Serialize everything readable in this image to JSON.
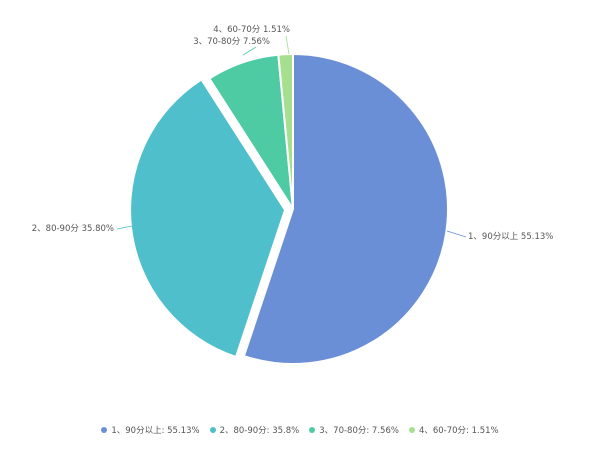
{
  "chart_data": {
    "type": "pie",
    "title": "",
    "categories": [
      "1、90分以上",
      "2、80-90分",
      "3、70-80分",
      "4、60-70分"
    ],
    "values": [
      55.13,
      35.8,
      7.56,
      1.51
    ],
    "slice_labels": [
      "1、90分以上 55.13%",
      "2、80-90分 35.80%",
      "3、70-80分 7.56%",
      "4、60-70分 1.51%"
    ],
    "legend_labels": [
      "1、90分以上: 55.13%",
      "2、80-90分: 35.8%",
      "3、70-80分: 7.56%",
      "4、60-70分: 1.51%"
    ],
    "colors": [
      "#6b8fd6",
      "#4ebfcb",
      "#4ecba3",
      "#a6df8e"
    ],
    "exploded_slice": "2、80-90分",
    "legend_position": "bottom"
  }
}
